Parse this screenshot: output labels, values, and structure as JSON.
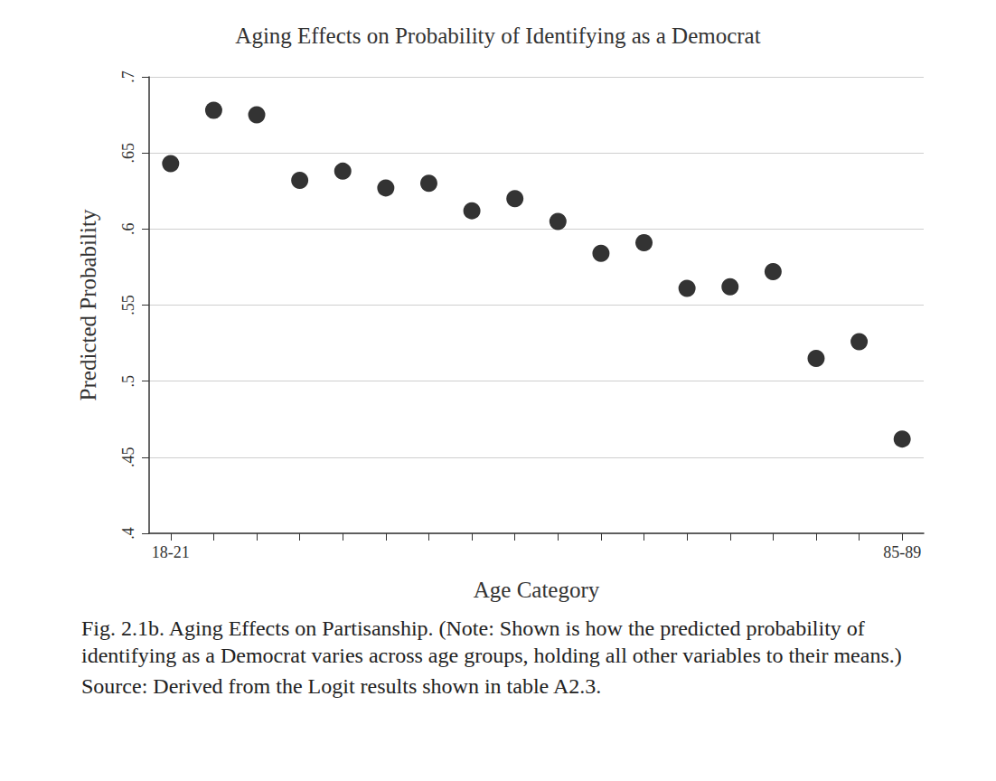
{
  "chart_data": {
    "type": "scatter",
    "title": "Aging Effects on Probability of Identifying as a Democrat",
    "x_label": "Age Category",
    "y_label": "Predicted Probability",
    "categories": [
      "18-21",
      null,
      null,
      null,
      null,
      null,
      null,
      null,
      null,
      null,
      null,
      null,
      null,
      null,
      null,
      null,
      null,
      "85-89"
    ],
    "values": [
      0.643,
      0.678,
      0.675,
      0.632,
      0.638,
      0.627,
      0.63,
      0.612,
      0.62,
      0.605,
      0.584,
      0.591,
      0.561,
      0.562,
      0.572,
      0.515,
      0.526,
      0.462
    ],
    "color": "#000000",
    "marker": "circle",
    "ylim": [
      0.4,
      0.7
    ],
    "yticks": [
      {
        "value": 0.4,
        "label": ".4"
      },
      {
        "value": 0.45,
        "label": ".45"
      },
      {
        "value": 0.5,
        "label": ".5"
      },
      {
        "value": 0.55,
        "label": ".55"
      },
      {
        "value": 0.6,
        "label": ".6"
      },
      {
        "value": 0.65,
        "label": ".65"
      },
      {
        "value": 0.7,
        "label": ".7"
      }
    ],
    "grid": true,
    "annotations": [
      "Fig. 2.1b. Aging Effects on Partisanship. (Note: Shown is how the predicted probability of identifying as a Democrat varies across age groups, holding all other variables to their means.)",
      "Source: Derived from the Logit results shown in table A2.3."
    ]
  }
}
